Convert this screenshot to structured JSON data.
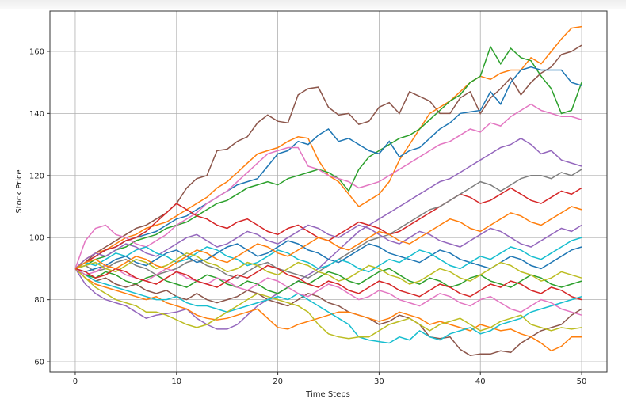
{
  "chart_data": {
    "type": "line",
    "title": "",
    "xlabel": "Time Steps",
    "ylabel": "Stock Price",
    "xlim": [
      -2.5,
      52.5
    ],
    "ylim": [
      56.7,
      173
    ],
    "xticks": [
      0,
      10,
      20,
      30,
      40,
      50
    ],
    "yticks": [
      60,
      80,
      100,
      120,
      140,
      160
    ],
    "grid": true,
    "legend": "none",
    "colors": [
      "#1f77b4",
      "#ff7f0e",
      "#2ca02c",
      "#d62728",
      "#9467bd",
      "#8c564b",
      "#e377c2",
      "#7f7f7f",
      "#bcbd22",
      "#17becf"
    ],
    "series": [
      {
        "color": "#8c564b",
        "values": [
          90,
          92,
          95,
          97,
          99,
          101,
          103,
          104,
          106,
          108,
          111,
          116,
          119,
          120,
          128,
          128.5,
          131,
          132.5,
          137,
          139.5,
          137.5,
          137,
          146,
          148,
          148.5,
          142,
          139.5,
          140,
          136.5,
          137.5,
          142,
          143.5,
          140,
          147,
          145.5,
          144,
          140,
          140,
          145,
          147,
          140,
          145,
          148,
          151.5,
          146,
          150,
          153,
          155,
          159,
          160,
          162
        ]
      },
      {
        "color": "#ff7f0e",
        "values": [
          90,
          93,
          95,
          96,
          98,
          100,
          101,
          103,
          104,
          105,
          107,
          109,
          111,
          113,
          116,
          118,
          121,
          124,
          127,
          128,
          129,
          131,
          132.5,
          132,
          125,
          120,
          118,
          114,
          110,
          112,
          114,
          118,
          125,
          130,
          135,
          140,
          142,
          144,
          147,
          150,
          152,
          151,
          153,
          154,
          154,
          158,
          156,
          160,
          164,
          167.5,
          168
        ]
      },
      {
        "color": "#2ca02c",
        "values": [
          90,
          91,
          93,
          94,
          96,
          97,
          99,
          100,
          101,
          103,
          104,
          105,
          107,
          109,
          111,
          112,
          114,
          116,
          117,
          118,
          117,
          119,
          120,
          121,
          122,
          121,
          119,
          115,
          122,
          126,
          128,
          130,
          132,
          133,
          135,
          138,
          141,
          144,
          146,
          150,
          152,
          161.5,
          156,
          161,
          158,
          157,
          152,
          148,
          140,
          141,
          150
        ]
      },
      {
        "color": "#1f77b4",
        "values": [
          90,
          92,
          94,
          96,
          97,
          99,
          100,
          101,
          102,
          104,
          106,
          107,
          109,
          111,
          113,
          115,
          117,
          118,
          119,
          123,
          127,
          128,
          131,
          130,
          133,
          135,
          131,
          132,
          130,
          128,
          127,
          131,
          126,
          128,
          129,
          132,
          135,
          137,
          140,
          140.5,
          141,
          147,
          143,
          150,
          154,
          155,
          154,
          154,
          154,
          150,
          149
        ]
      },
      {
        "color": "#e377c2",
        "values": [
          90,
          99,
          103,
          104,
          101,
          100,
          98,
          97,
          99,
          101,
          104,
          106,
          108,
          111,
          113,
          115,
          118,
          121,
          124,
          127,
          128,
          129,
          129,
          123,
          122,
          120,
          119,
          118,
          116,
          117,
          118,
          120,
          122,
          124,
          126,
          128,
          130,
          131,
          133,
          135,
          134,
          137,
          136,
          139,
          141,
          143,
          141,
          140,
          139,
          139,
          138
        ]
      },
      {
        "color": "#9467bd",
        "values": [
          90,
          85,
          82,
          80,
          79,
          78,
          76,
          74,
          75,
          75.5,
          76,
          77,
          74,
          72,
          70.5,
          70.5,
          72,
          75,
          78,
          80,
          82,
          84,
          86,
          88,
          90,
          93,
          96,
          99,
          102,
          104,
          106,
          108,
          110,
          112,
          114,
          116,
          118,
          119,
          121,
          123,
          125,
          127,
          129,
          130,
          132,
          130,
          127,
          128,
          125,
          124,
          123
        ]
      },
      {
        "color": "#8c564b",
        "values": [
          90,
          88,
          86,
          87,
          85,
          84,
          85,
          83,
          82,
          83,
          81,
          80,
          82,
          80,
          79,
          80,
          81,
          83,
          82,
          80,
          79,
          78,
          80,
          82,
          81,
          79,
          78,
          76,
          75,
          74,
          72,
          73,
          75,
          74,
          72,
          68,
          67.5,
          68,
          64,
          62,
          62.5,
          62.5,
          63.5,
          63,
          66,
          68,
          70,
          71,
          72,
          75,
          77
        ]
      },
      {
        "color": "#ff7f0e",
        "values": [
          90,
          87,
          85,
          84,
          83,
          82,
          81,
          80,
          81,
          79,
          78,
          77,
          75,
          74,
          73.5,
          74,
          75,
          76,
          77,
          74,
          71,
          70.5,
          72,
          73,
          74,
          75,
          76,
          76,
          75,
          74,
          73,
          74,
          76,
          75,
          74,
          72,
          73,
          72,
          71,
          70,
          72,
          71,
          70,
          70.5,
          69,
          68,
          66,
          63.5,
          65,
          68,
          68
        ]
      },
      {
        "color": "#17becf",
        "values": [
          90,
          88,
          86,
          85,
          84,
          83,
          82,
          81,
          80,
          80,
          81,
          79,
          78,
          78,
          77,
          76,
          77,
          78,
          79,
          80,
          81,
          80,
          82,
          80,
          78,
          76,
          74,
          72,
          68,
          67,
          66.5,
          66,
          68,
          67,
          70,
          68,
          67,
          69,
          70,
          71,
          69,
          70,
          72,
          73,
          74,
          76,
          77,
          78,
          79,
          80,
          81
        ]
      },
      {
        "color": "#bcbd22",
        "values": [
          90,
          87,
          84,
          82,
          80,
          79,
          78,
          76,
          76,
          75,
          73.5,
          72,
          71,
          72,
          74,
          76,
          78,
          80,
          82,
          81,
          80,
          79,
          78,
          76,
          72,
          69,
          68,
          67.5,
          68,
          68,
          70,
          72,
          73,
          74,
          72,
          70,
          72,
          73,
          74,
          72,
          70,
          71,
          73,
          74,
          75,
          72,
          71,
          70,
          71,
          70.5,
          71
        ]
      },
      {
        "color": "#d62728",
        "values": [
          90,
          92,
          94,
          96,
          97,
          99,
          100,
          102,
          105,
          108,
          111,
          109,
          107,
          106,
          104,
          103,
          105,
          106,
          104,
          102,
          101,
          103,
          104,
          102,
          100,
          99,
          101,
          103,
          105,
          104,
          103,
          101,
          102,
          104,
          106,
          108,
          110,
          112,
          114,
          113,
          111,
          112,
          114,
          116,
          114,
          112,
          111,
          113,
          115,
          114,
          116
        ]
      },
      {
        "color": "#7f7f7f",
        "values": [
          90,
          91,
          89,
          90,
          92,
          93,
          91,
          90,
          88,
          89,
          90,
          92,
          93,
          91,
          90,
          88,
          87,
          89,
          91,
          92,
          90,
          89,
          88,
          87,
          89,
          91,
          93,
          95,
          97,
          99,
          100,
          101,
          103,
          105,
          107,
          109,
          110,
          112,
          114,
          116,
          118,
          117,
          115,
          117,
          119,
          120,
          120,
          119,
          121,
          120,
          122
        ]
      },
      {
        "color": "#1f77b4",
        "values": [
          90,
          89,
          90,
          91,
          93,
          94,
          92,
          91,
          93,
          95,
          96,
          94,
          92,
          93,
          95,
          97,
          98,
          96,
          94,
          95,
          97,
          99,
          98,
          96,
          95,
          93,
          92,
          94,
          96,
          98,
          97,
          95,
          94,
          93,
          92,
          94,
          96,
          95,
          93,
          92,
          91,
          90,
          92,
          94,
          93,
          91,
          90,
          92,
          94,
          96,
          97
        ]
      },
      {
        "color": "#2ca02c",
        "values": [
          90,
          88,
          87,
          89,
          88,
          86,
          85,
          87,
          88,
          86,
          85,
          84,
          86,
          88,
          87,
          85,
          84,
          86,
          85,
          83,
          82,
          84,
          86,
          85,
          87,
          89,
          88,
          86,
          85,
          87,
          89,
          90,
          88,
          86,
          85,
          87,
          86,
          84,
          85,
          87,
          88,
          86,
          85,
          84,
          86,
          88,
          87,
          85,
          84,
          85,
          86
        ]
      },
      {
        "color": "#9467bd",
        "values": [
          90,
          93,
          95,
          94,
          96,
          98,
          97,
          95,
          94,
          96,
          98,
          100,
          101,
          99,
          97,
          98,
          100,
          102,
          101,
          99,
          98,
          100,
          102,
          104,
          103,
          101,
          100,
          102,
          104,
          103,
          101,
          99,
          98,
          100,
          102,
          101,
          99,
          98,
          97,
          99,
          101,
          103,
          102,
          100,
          98,
          97,
          99,
          101,
          103,
          102,
          104
        ]
      },
      {
        "color": "#e377c2",
        "values": [
          90,
          88,
          89,
          91,
          90,
          88,
          87,
          86,
          88,
          90,
          89,
          87,
          86,
          85,
          87,
          86,
          84,
          83,
          85,
          87,
          86,
          84,
          82,
          81,
          83,
          85,
          84,
          82,
          80,
          81,
          83,
          82,
          80,
          79,
          78,
          80,
          82,
          81,
          79,
          78,
          80,
          81,
          79,
          77,
          76,
          78,
          80,
          79,
          77,
          76,
          75
        ]
      },
      {
        "color": "#17becf",
        "values": [
          90,
          92,
          91,
          93,
          95,
          94,
          96,
          97,
          95,
          94,
          92,
          93,
          95,
          97,
          96,
          94,
          93,
          91,
          92,
          94,
          96,
          95,
          93,
          92,
          90,
          91,
          93,
          92,
          90,
          89,
          91,
          93,
          92,
          94,
          96,
          95,
          93,
          91,
          90,
          92,
          94,
          93,
          95,
          97,
          96,
          94,
          93,
          95,
          97,
          99,
          100
        ]
      },
      {
        "color": "#bcbd22",
        "values": [
          90,
          91,
          92,
          90,
          89,
          91,
          93,
          92,
          90,
          91,
          93,
          95,
          94,
          92,
          91,
          89,
          90,
          92,
          91,
          89,
          88,
          90,
          92,
          91,
          89,
          88,
          86,
          87,
          89,
          91,
          90,
          88,
          87,
          85,
          86,
          88,
          90,
          89,
          87,
          86,
          88,
          90,
          92,
          91,
          89,
          88,
          86,
          87,
          89,
          88,
          87
        ]
      },
      {
        "color": "#d62728",
        "values": [
          90,
          89,
          87,
          88,
          90,
          89,
          87,
          86,
          85,
          87,
          89,
          88,
          86,
          85,
          84,
          86,
          88,
          87,
          89,
          91,
          90,
          88,
          87,
          85,
          84,
          86,
          85,
          83,
          82,
          84,
          86,
          85,
          83,
          82,
          81,
          83,
          85,
          84,
          82,
          81,
          83,
          85,
          84,
          86,
          85,
          83,
          82,
          84,
          83,
          81,
          80
        ]
      },
      {
        "color": "#ff7f0e",
        "values": [
          90,
          92,
          93,
          91,
          90,
          92,
          94,
          93,
          91,
          90,
          92,
          94,
          96,
          95,
          93,
          92,
          94,
          96,
          98,
          97,
          95,
          94,
          96,
          98,
          100,
          99,
          97,
          96,
          98,
          100,
          102,
          101,
          99,
          98,
          100,
          102,
          104,
          106,
          105,
          103,
          102,
          104,
          106,
          108,
          107,
          105,
          104,
          106,
          108,
          110,
          109
        ]
      }
    ]
  }
}
